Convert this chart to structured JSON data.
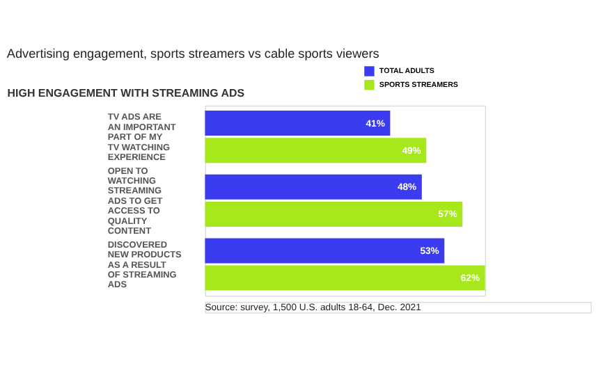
{
  "chart_data": {
    "type": "bar",
    "orientation": "horizontal",
    "title": "Advertising engagement, sports streamers vs cable sports viewers",
    "subtitle": "HIGH ENGAGEMENT WITH STREAMING ADS",
    "categories": [
      "TV ADS ARE AN IMPORTANT PART OF MY TV WATCHING EXPERIENCE",
      "OPEN TO WATCHING STREAMING ADS TO GET ACCESS TO QUALITY CONTENT",
      "DISCOVERED NEW PRODUCTS AS A RESULT OF STREAMING ADS"
    ],
    "series": [
      {
        "name": "TOTAL ADULTS",
        "color": "#3b3bf0",
        "values": [
          41,
          48,
          53
        ],
        "value_labels": [
          "41%",
          "48%",
          "53%"
        ]
      },
      {
        "name": "SPORTS STREAMERS",
        "color": "#a6e81c",
        "values": [
          49,
          57,
          62
        ],
        "value_labels": [
          "49%",
          "57%",
          "62%"
        ]
      }
    ],
    "legend": "top right",
    "annotations": [
      "Source: survey, 1,500 U.S. adults 18-64, Dec. 2021"
    ]
  }
}
